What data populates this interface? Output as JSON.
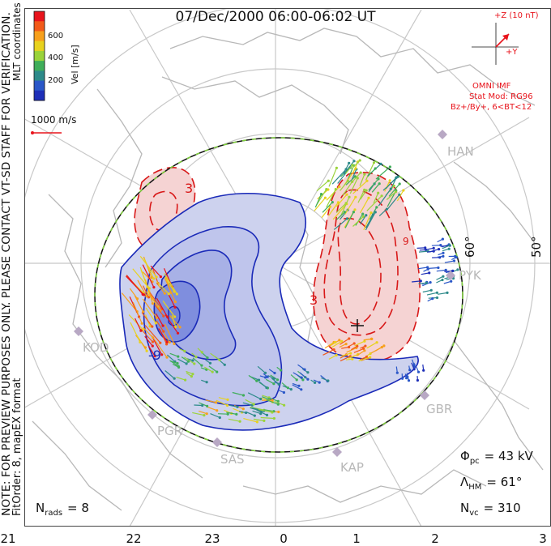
{
  "title": "07/Dec/2000 06:00-06:02 UT",
  "side_note": {
    "line1": "NOTE: FOR PREVIEW PURPOSES ONLY. PLEASE CONTACT VT-SD STAFF FOR VERIFICATION.",
    "line2": "FitOrder: 8, mapEX format"
  },
  "coord_label": "MLT coordinates",
  "color_scale": {
    "label": "Vel [m/s]",
    "ticks": [
      "600",
      "400",
      "200"
    ],
    "colors": [
      "#e8141c",
      "#f25a1a",
      "#f7a01c",
      "#e8d21e",
      "#9ad33a",
      "#3fae5a",
      "#2d8a8a",
      "#2a57c8",
      "#1e2fb8"
    ]
  },
  "vector_scale_label": "1000 m/s",
  "imf": {
    "bz_label": "+Z (10 nT)",
    "by_label": "+Y",
    "source": "OMNI IMF",
    "model": "Stat Mod: RG96",
    "condition": "Bz+/By+, 6<BT<12",
    "color": "#e8141c"
  },
  "stats": {
    "phi_sym": "Φ",
    "phi_sub": "pc",
    "phi_value": "= 43 kV",
    "lambda_sym": "Λ",
    "lambda_sub": "HM",
    "lambda_value": "= 61°",
    "nvc_sym": "N",
    "nvc_sub": "vc",
    "nvc_value": "= 310",
    "nrads_sym": "N",
    "nrads_sub": "rads",
    "nrads_value": "= 8"
  },
  "mlt_labels": [
    "21",
    "22",
    "23",
    "0",
    "1",
    "2",
    "3"
  ],
  "lat_labels": [
    "60°",
    "50°"
  ],
  "contour_labels": [
    "3",
    "3",
    "-9",
    "9"
  ],
  "radar_stations": [
    "HAN",
    "PYK",
    "KOD",
    "PGR",
    "SAS",
    "KAP",
    "GBR"
  ],
  "colors": {
    "negative_fill": "#cdd2ee",
    "negative_fill_inner": "#a8b1e6",
    "negative_fill_core": "#7f8ede",
    "negative_line": "#1a2ab8",
    "positive_fill": "#f5d3d3",
    "positive_line": "#d81818",
    "graticule": "#c8c8c8",
    "coast": "#b8b8b8",
    "heppner": "#111111",
    "heppner_dash": "#7fd13b",
    "station": "#b8a8c4"
  }
}
